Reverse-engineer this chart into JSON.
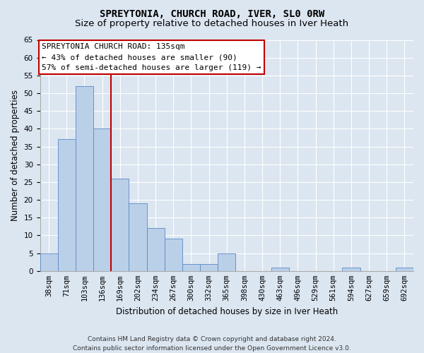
{
  "title1": "SPREYTONIA, CHURCH ROAD, IVER, SL0 0RW",
  "title2": "Size of property relative to detached houses in Iver Heath",
  "xlabel": "Distribution of detached houses by size in Iver Heath",
  "ylabel": "Number of detached properties",
  "footer1": "Contains HM Land Registry data © Crown copyright and database right 2024.",
  "footer2": "Contains public sector information licensed under the Open Government Licence v3.0.",
  "annotation_title": "SPREYTONIA CHURCH ROAD: 135sqm",
  "annotation_line1": "← 43% of detached houses are smaller (90)",
  "annotation_line2": "57% of semi-detached houses are larger (119) →",
  "bar_values": [
    5,
    37,
    52,
    40,
    26,
    19,
    12,
    9,
    2,
    2,
    5,
    0,
    0,
    1,
    0,
    0,
    0,
    1,
    0,
    0,
    1
  ],
  "categories": [
    "38sqm",
    "71sqm",
    "103sqm",
    "136sqm",
    "169sqm",
    "202sqm",
    "234sqm",
    "267sqm",
    "300sqm",
    "332sqm",
    "365sqm",
    "398sqm",
    "430sqm",
    "463sqm",
    "496sqm",
    "529sqm",
    "561sqm",
    "594sqm",
    "627sqm",
    "659sqm",
    "692sqm"
  ],
  "bar_color": "#bad0e8",
  "bar_edge_color": "#5b87c5",
  "vline_color": "#c00000",
  "vline_x_index": 3.5,
  "background_color": "#dce6f1",
  "plot_bg_color": "#dce6f1",
  "ylim": [
    0,
    65
  ],
  "yticks": [
    0,
    5,
    10,
    15,
    20,
    25,
    30,
    35,
    40,
    45,
    50,
    55,
    60,
    65
  ],
  "annotation_box_color": "white",
  "annotation_box_edge": "#c00000",
  "grid_color": "#ffffff",
  "title_fontsize": 10,
  "subtitle_fontsize": 9.5,
  "axis_label_fontsize": 8.5,
  "tick_fontsize": 7.5,
  "annotation_fontsize": 8
}
